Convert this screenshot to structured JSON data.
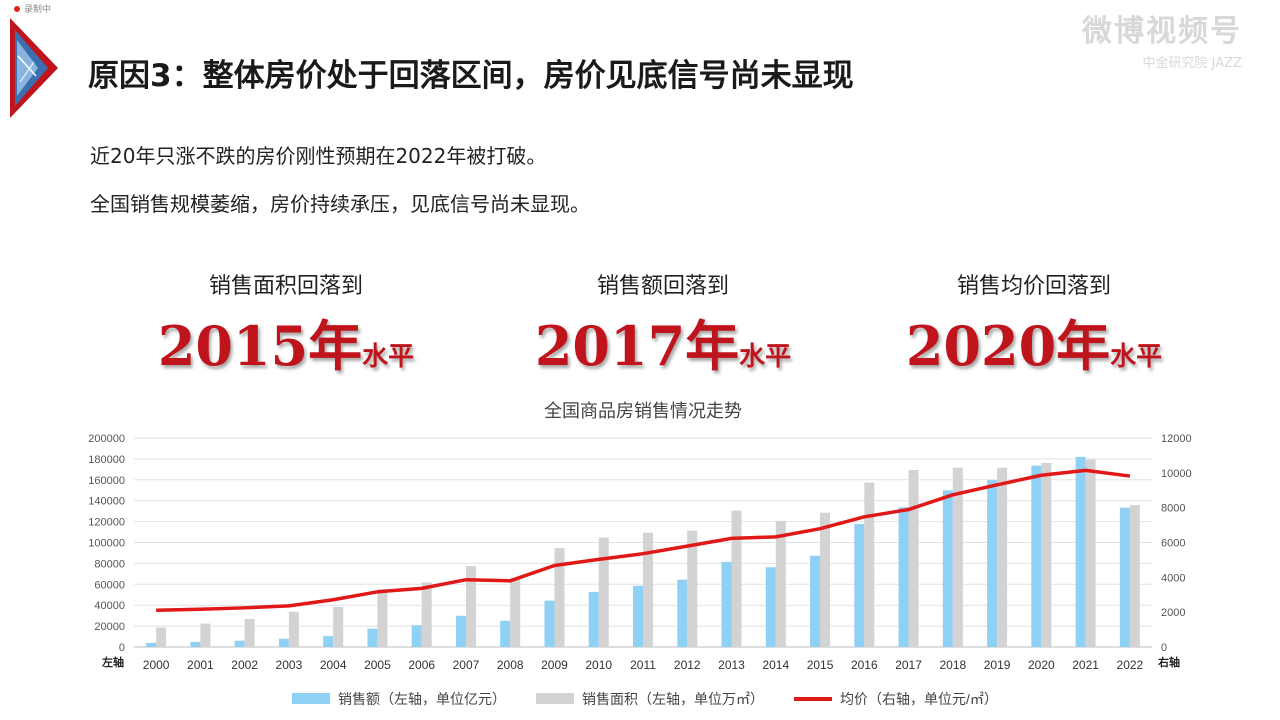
{
  "recording": {
    "label": "录制中"
  },
  "watermark": {
    "main": "微博视频号",
    "sub": "中金研究院 JAZZ"
  },
  "title": "原因3：整体房价处于回落区间，房价见底信号尚未显现",
  "bullets": [
    "近20年只涨不跌的房价刚性预期在2022年被打破。",
    "全国销售规模萎缩，房价持续承压，见底信号尚未显现。"
  ],
  "stats": [
    {
      "label": "销售面积回落到",
      "year": "2015年",
      "unit": "水平"
    },
    {
      "label": "销售额回落到",
      "year": "2017年",
      "unit": "水平"
    },
    {
      "label": "销售均价回落到",
      "year": "2020年",
      "unit": "水平"
    }
  ],
  "colors": {
    "accent": "#c0141c",
    "sales": "#8fd0f5",
    "area": "#d3d3d3",
    "price": "#e01818"
  },
  "chart_data": {
    "type": "bar",
    "title": "全国商品房销售情况走势",
    "left_axis_label": "左轴",
    "right_axis_label": "右轴",
    "categories": [
      "2000",
      "2001",
      "2002",
      "2003",
      "2004",
      "2005",
      "2006",
      "2007",
      "2008",
      "2009",
      "2010",
      "2011",
      "2012",
      "2013",
      "2014",
      "2015",
      "2016",
      "2017",
      "2018",
      "2019",
      "2020",
      "2021",
      "2022"
    ],
    "ylim_left": [
      0,
      200000
    ],
    "ylim_right": [
      0,
      12000
    ],
    "yticks_left": [
      0,
      20000,
      40000,
      60000,
      80000,
      100000,
      120000,
      140000,
      160000,
      180000,
      200000
    ],
    "yticks_right": [
      0,
      2000,
      4000,
      6000,
      8000,
      10000,
      12000
    ],
    "grid": true,
    "legend_position": "bottom",
    "series": [
      {
        "name": "销售额（左轴，单位亿元）",
        "type": "bar",
        "axis": "left",
        "values": [
          3936,
          4863,
          6032,
          7956,
          10376,
          17576,
          20826,
          29889,
          25068,
          44355,
          52721,
          58589,
          64456,
          81428,
          76292,
          87281,
          117627,
          133701,
          149973,
          159725,
          173613,
          181930,
          133308
        ]
      },
      {
        "name": "销售面积（左轴，单位万㎡）",
        "type": "bar",
        "axis": "left",
        "values": [
          18637,
          22412,
          26808,
          33718,
          38232,
          55486,
          61857,
          77355,
          65970,
          94755,
          104765,
          109367,
          111304,
          130551,
          120649,
          128495,
          157349,
          169408,
          171654,
          171558,
          176086,
          179433,
          135837
        ]
      },
      {
        "name": "均价（右轴，单位元/㎡）",
        "type": "line",
        "axis": "right",
        "values": [
          2112,
          2170,
          2250,
          2359,
          2714,
          3168,
          3367,
          3864,
          3800,
          4681,
          5032,
          5357,
          5791,
          6237,
          6324,
          6793,
          7476,
          7892,
          8737,
          9310,
          9860,
          10139,
          9814
        ]
      }
    ]
  }
}
